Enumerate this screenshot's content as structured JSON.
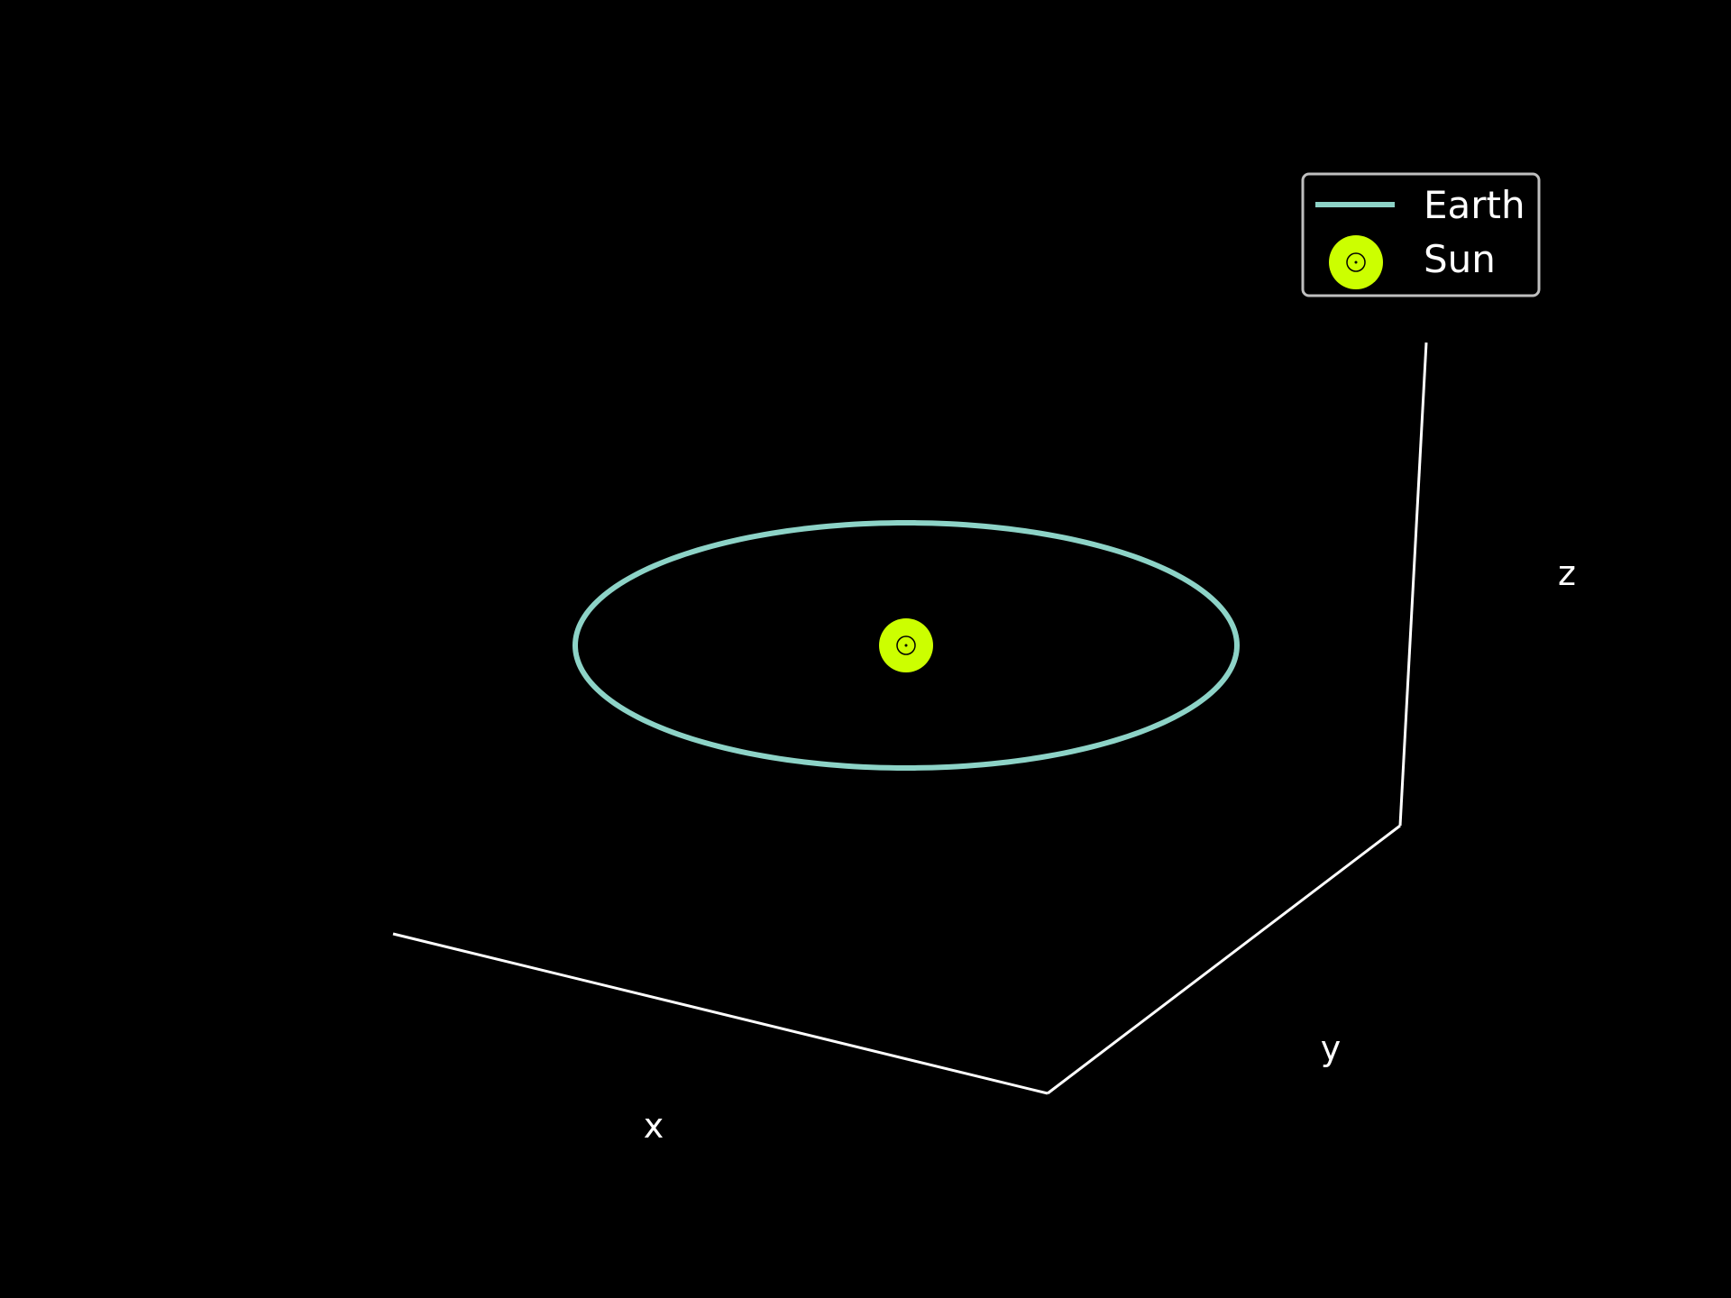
{
  "chart_data": {
    "type": "line",
    "projection": "3d",
    "grid": false,
    "legend_position": "top-right",
    "background_color": "#000000",
    "axes": {
      "xlabel": "x",
      "ylabel": "y",
      "zlabel": "z",
      "color": "#ffffff"
    },
    "series": [
      {
        "name": "Earth",
        "kind": "line",
        "color": "#8dd3c7",
        "shape": "circular orbit in the x–y plane, z = 0",
        "x": [
          1.0,
          0.866,
          0.5,
          0.0,
          -0.5,
          -0.866,
          -1.0,
          -0.866,
          -0.5,
          0.0,
          0.5,
          0.866,
          1.0
        ],
        "y": [
          0.0,
          0.5,
          0.866,
          1.0,
          0.866,
          0.5,
          0.0,
          -0.5,
          -0.866,
          -1.0,
          -0.866,
          -0.5,
          0.0
        ],
        "z": [
          0,
          0,
          0,
          0,
          0,
          0,
          0,
          0,
          0,
          0,
          0,
          0,
          0
        ]
      },
      {
        "name": "Sun",
        "kind": "marker",
        "color": "#ccff00",
        "marker": "☉",
        "x": [
          0
        ],
        "y": [
          0
        ],
        "z": [
          0
        ]
      }
    ]
  }
}
